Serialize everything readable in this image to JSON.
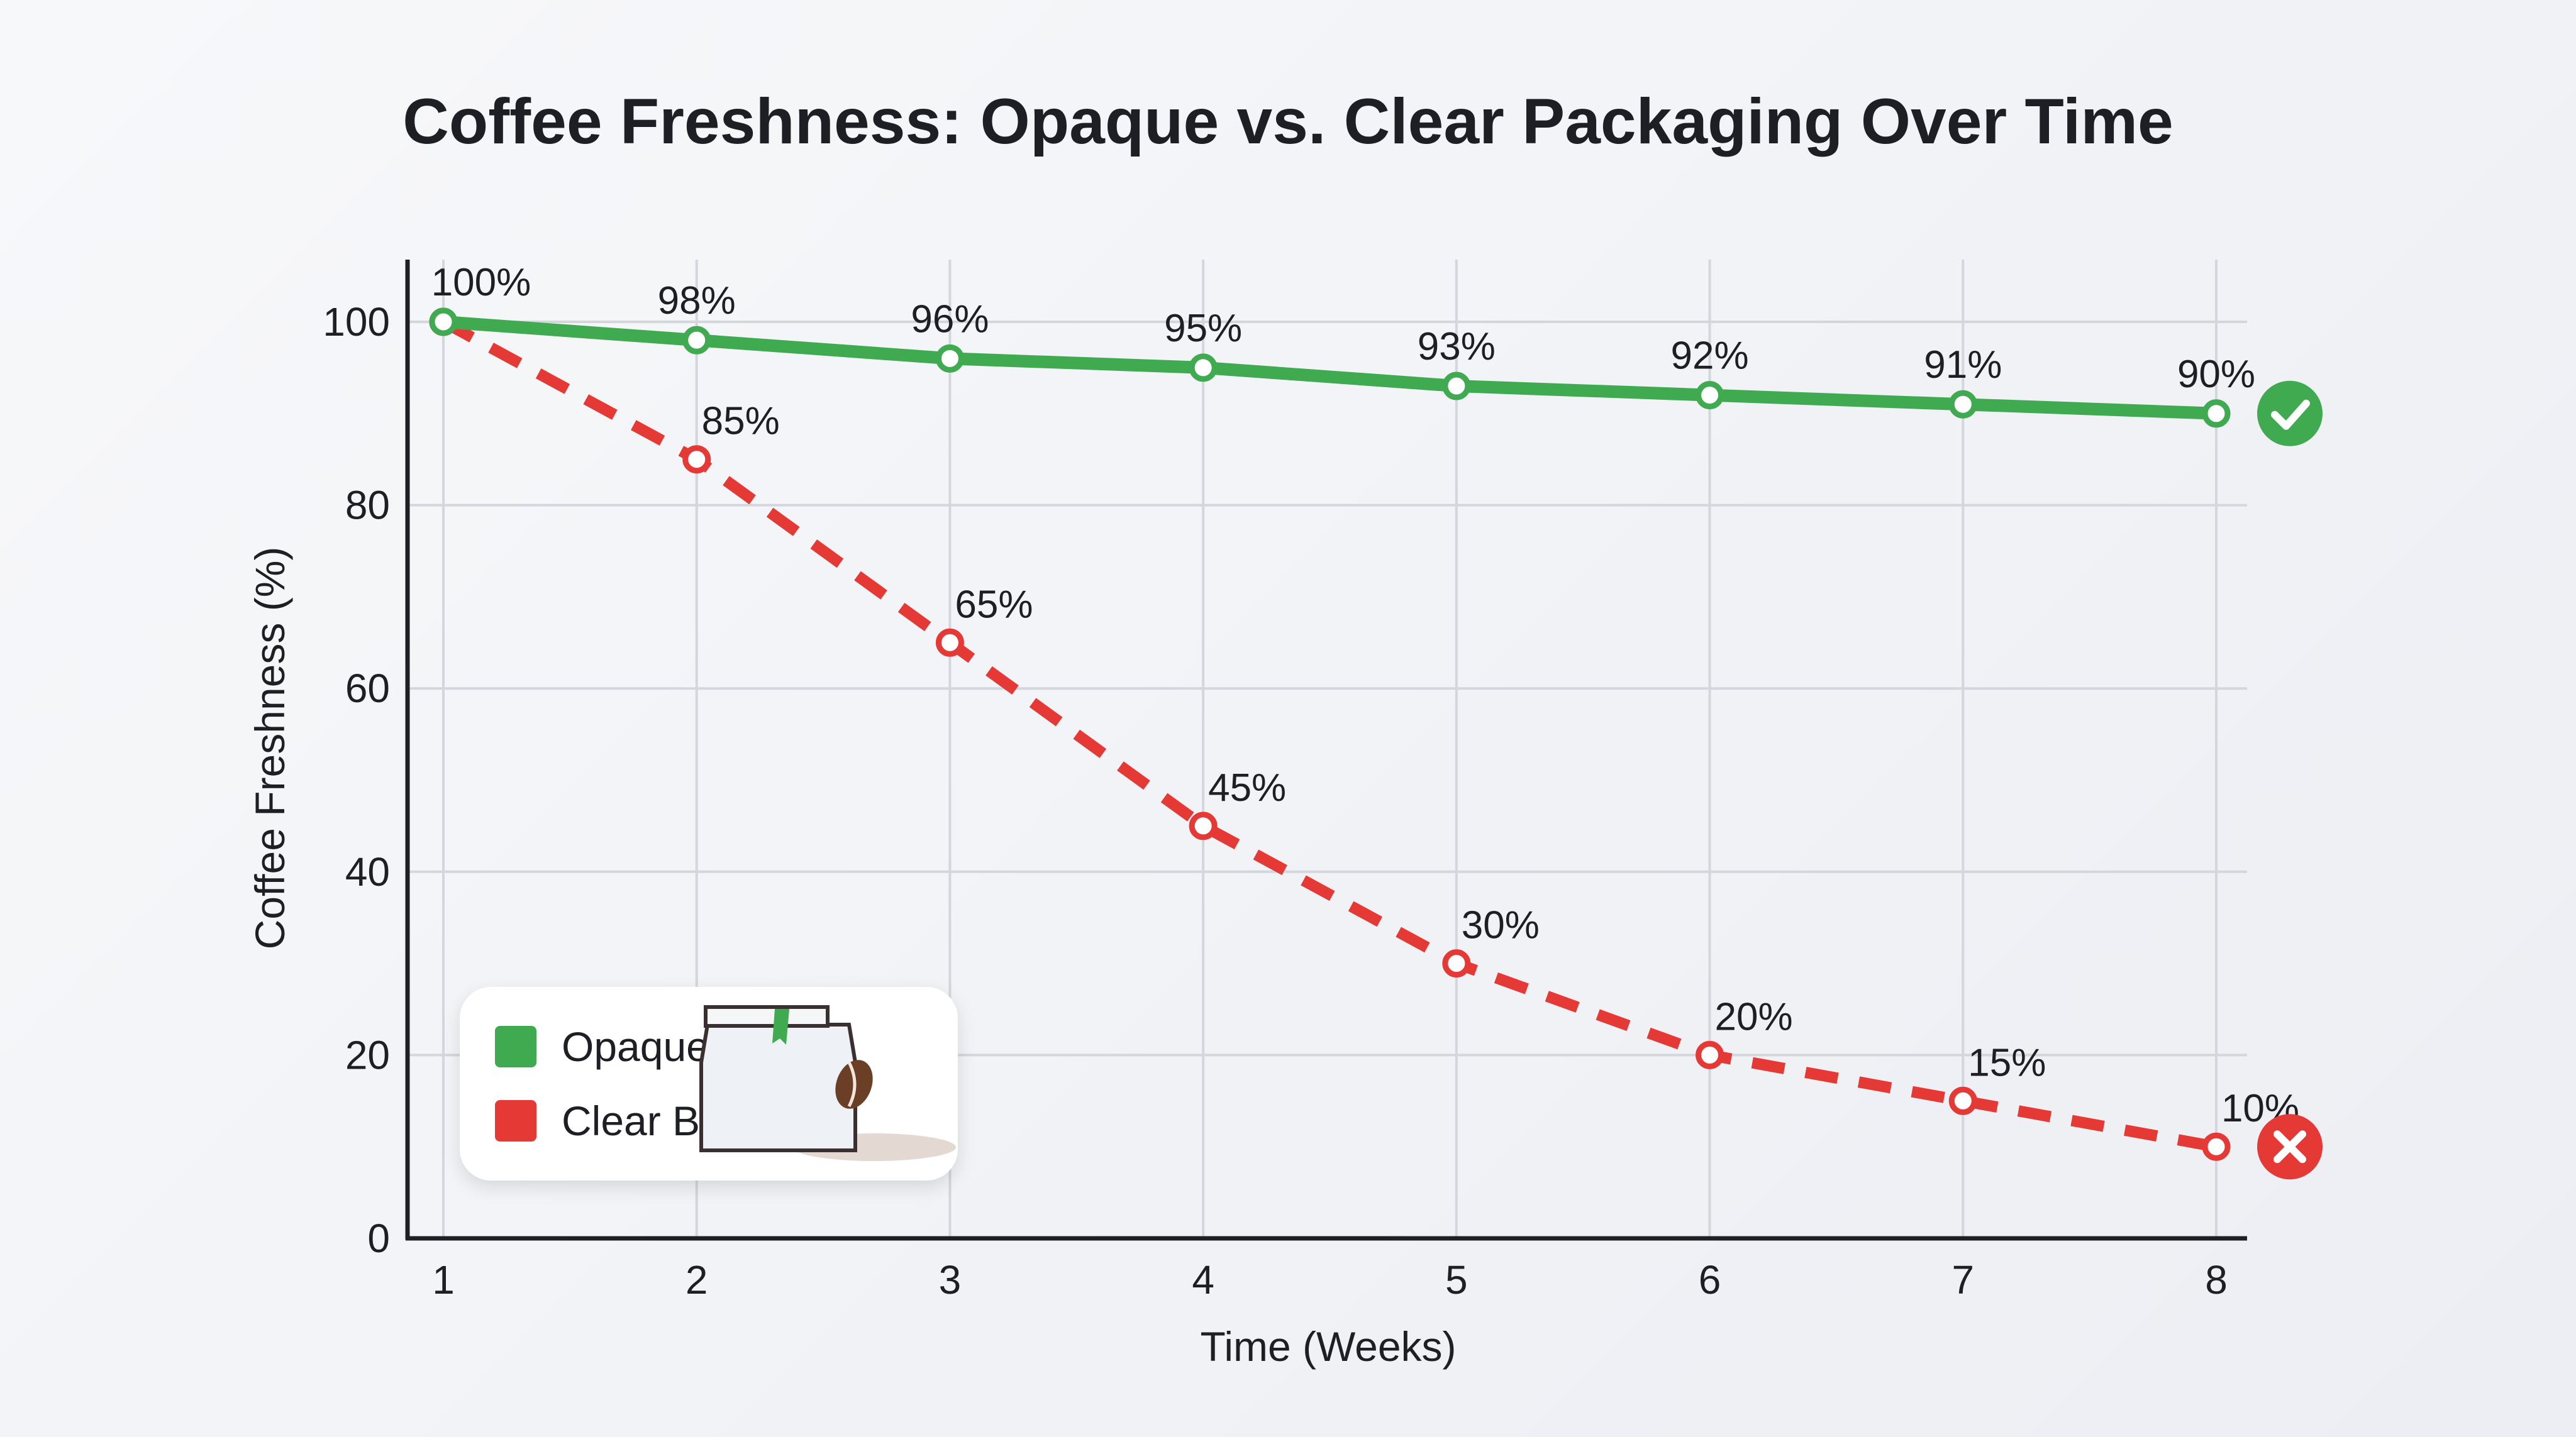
{
  "chart_data": {
    "type": "line",
    "title": "Coffee Freshness: Opaque vs. Clear Packaging Over Time",
    "xlabel": "Time (Weeks)",
    "ylabel": "Coffee Freshness (%)",
    "x": [
      1,
      2,
      3,
      4,
      5,
      6,
      7,
      8
    ],
    "xticks": [
      "1",
      "2",
      "3",
      "4",
      "5",
      "6",
      "7",
      "8"
    ],
    "yticks": [
      "0",
      "20",
      "40",
      "60",
      "80",
      "100"
    ],
    "ylim": [
      0,
      100
    ],
    "grid": true,
    "legend_position": "bottom-left",
    "series": [
      {
        "name": "Opaque Bag",
        "color": "#3faa4f",
        "style": "solid",
        "end_icon": "check-circle-icon",
        "values": [
          100,
          98,
          96,
          95,
          93,
          92,
          91,
          90
        ],
        "labels": [
          "100%",
          "98%",
          "96%",
          "95%",
          "93%",
          "92%",
          "91%",
          "90%"
        ]
      },
      {
        "name": "Clear Bag",
        "color": "#e53935",
        "style": "dashed",
        "end_icon": "x-circle-icon",
        "values": [
          100,
          85,
          65,
          45,
          30,
          20,
          15,
          10
        ],
        "labels": [
          "",
          "85%",
          "65%",
          "45%",
          "30%",
          "20%",
          "15%",
          "10%"
        ]
      }
    ],
    "legend_icon": "coffee-bag-icon"
  }
}
